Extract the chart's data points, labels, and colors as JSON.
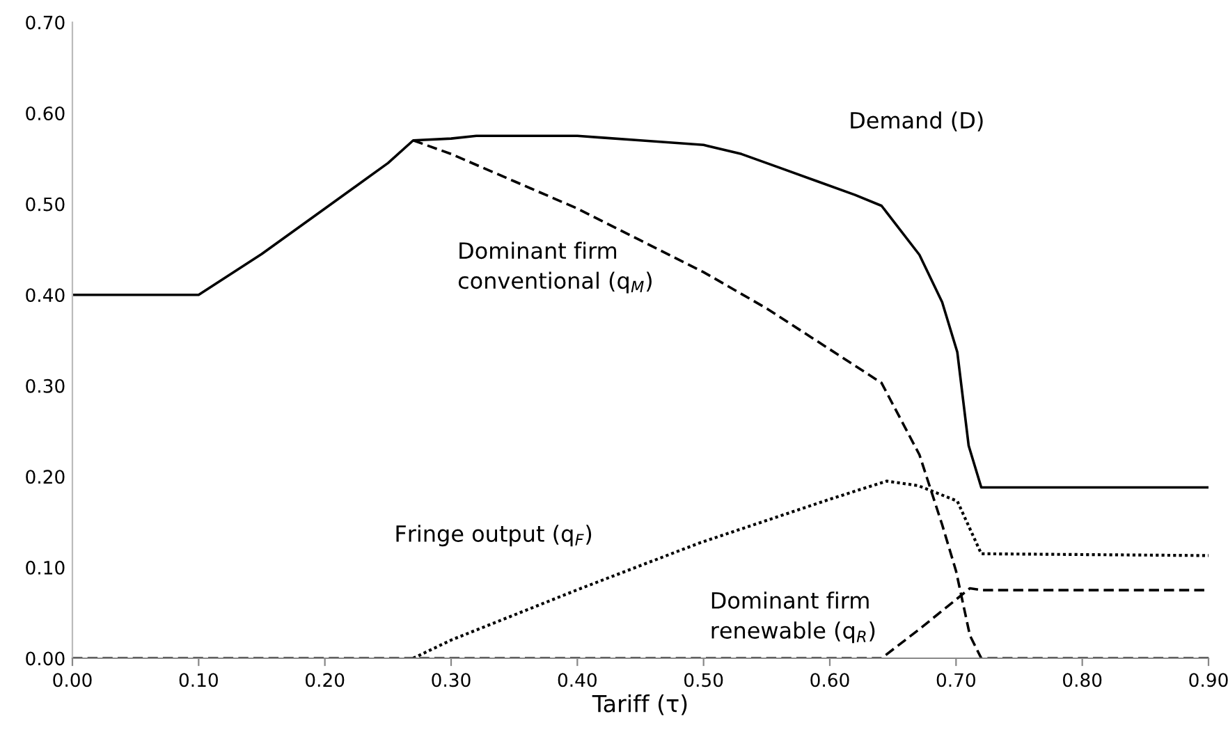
{
  "chart_data": {
    "type": "line",
    "xlabel": "Tariff (τ)",
    "xlim": [
      0,
      0.9
    ],
    "ylim": [
      0,
      0.7
    ],
    "xticks": [
      {
        "value": 0,
        "label": "0.00"
      },
      {
        "value": 0.1,
        "label": "0.10"
      },
      {
        "value": 0.2,
        "label": "0.20"
      },
      {
        "value": 0.3,
        "label": "0.30"
      },
      {
        "value": 0.4,
        "label": "0.40"
      },
      {
        "value": 0.5,
        "label": "0.50"
      },
      {
        "value": 0.6,
        "label": "0.60"
      },
      {
        "value": 0.7,
        "label": "0.70"
      },
      {
        "value": 0.8,
        "label": "0.80"
      },
      {
        "value": 0.9,
        "label": "0.90"
      }
    ],
    "yticks": [
      {
        "value": 0,
        "label": "0.00"
      },
      {
        "value": 0.1,
        "label": "0.10"
      },
      {
        "value": 0.2,
        "label": "0.20"
      },
      {
        "value": 0.3,
        "label": "0.30"
      },
      {
        "value": 0.4,
        "label": "0.40"
      },
      {
        "value": 0.5,
        "label": "0.50"
      },
      {
        "value": 0.6,
        "label": "0.60"
      },
      {
        "value": 0.7,
        "label": "0.70"
      }
    ],
    "grid": false,
    "legend": false,
    "series": [
      {
        "name": "Demand (D)",
        "color": "#000000",
        "line_style": "solid",
        "x": [
          0,
          0.1,
          0.15,
          0.2,
          0.25,
          0.27,
          0.3,
          0.32,
          0.4,
          0.42,
          0.45,
          0.5,
          0.53,
          0.56,
          0.59,
          0.62,
          0.641,
          0.671,
          0.689,
          0.701,
          0.71,
          0.72,
          0.9
        ],
        "values": [
          0.4,
          0.4,
          0.445,
          0.495,
          0.545,
          0.57,
          0.572,
          0.575,
          0.575,
          0.573,
          0.57,
          0.565,
          0.555,
          0.54,
          0.525,
          0.51,
          0.498,
          0.444,
          0.392,
          0.337,
          0.234,
          0.188,
          0.188
        ]
      },
      {
        "name": "Dominant firm\nconventional (q$_{M}$)",
        "color": "#000000",
        "line_style": "dashed",
        "x": [
          0.27,
          0.3,
          0.35,
          0.4,
          0.45,
          0.5,
          0.55,
          0.6,
          0.641,
          0.671,
          0.689,
          0.7,
          0.711,
          0.72,
          0.9
        ],
        "values": [
          0.57,
          0.555,
          0.525,
          0.495,
          0.46,
          0.425,
          0.385,
          0.34,
          0.303,
          0.224,
          0.147,
          0.096,
          0.025,
          0,
          0
        ]
      },
      {
        "name": "Fringe output (q$_{F}$)",
        "color": "#000000",
        "line_style": "dotted",
        "x": [
          0.27,
          0.3,
          0.403,
          0.497,
          0.6,
          0.645,
          0.67,
          0.701,
          0.72,
          0.9
        ],
        "values": [
          0,
          0.02,
          0.077,
          0.127,
          0.175,
          0.195,
          0.19,
          0.173,
          0.115,
          0.113
        ]
      },
      {
        "name": "Dominant firm\nrenewable (q$_{R}$)",
        "color": "#000000",
        "line_style": "dashed",
        "x": [
          0,
          0.641,
          0.671,
          0.711,
          0.72,
          0.9
        ],
        "values": [
          0,
          0,
          0.032,
          0.077,
          0.075,
          0.075
        ]
      }
    ]
  }
}
